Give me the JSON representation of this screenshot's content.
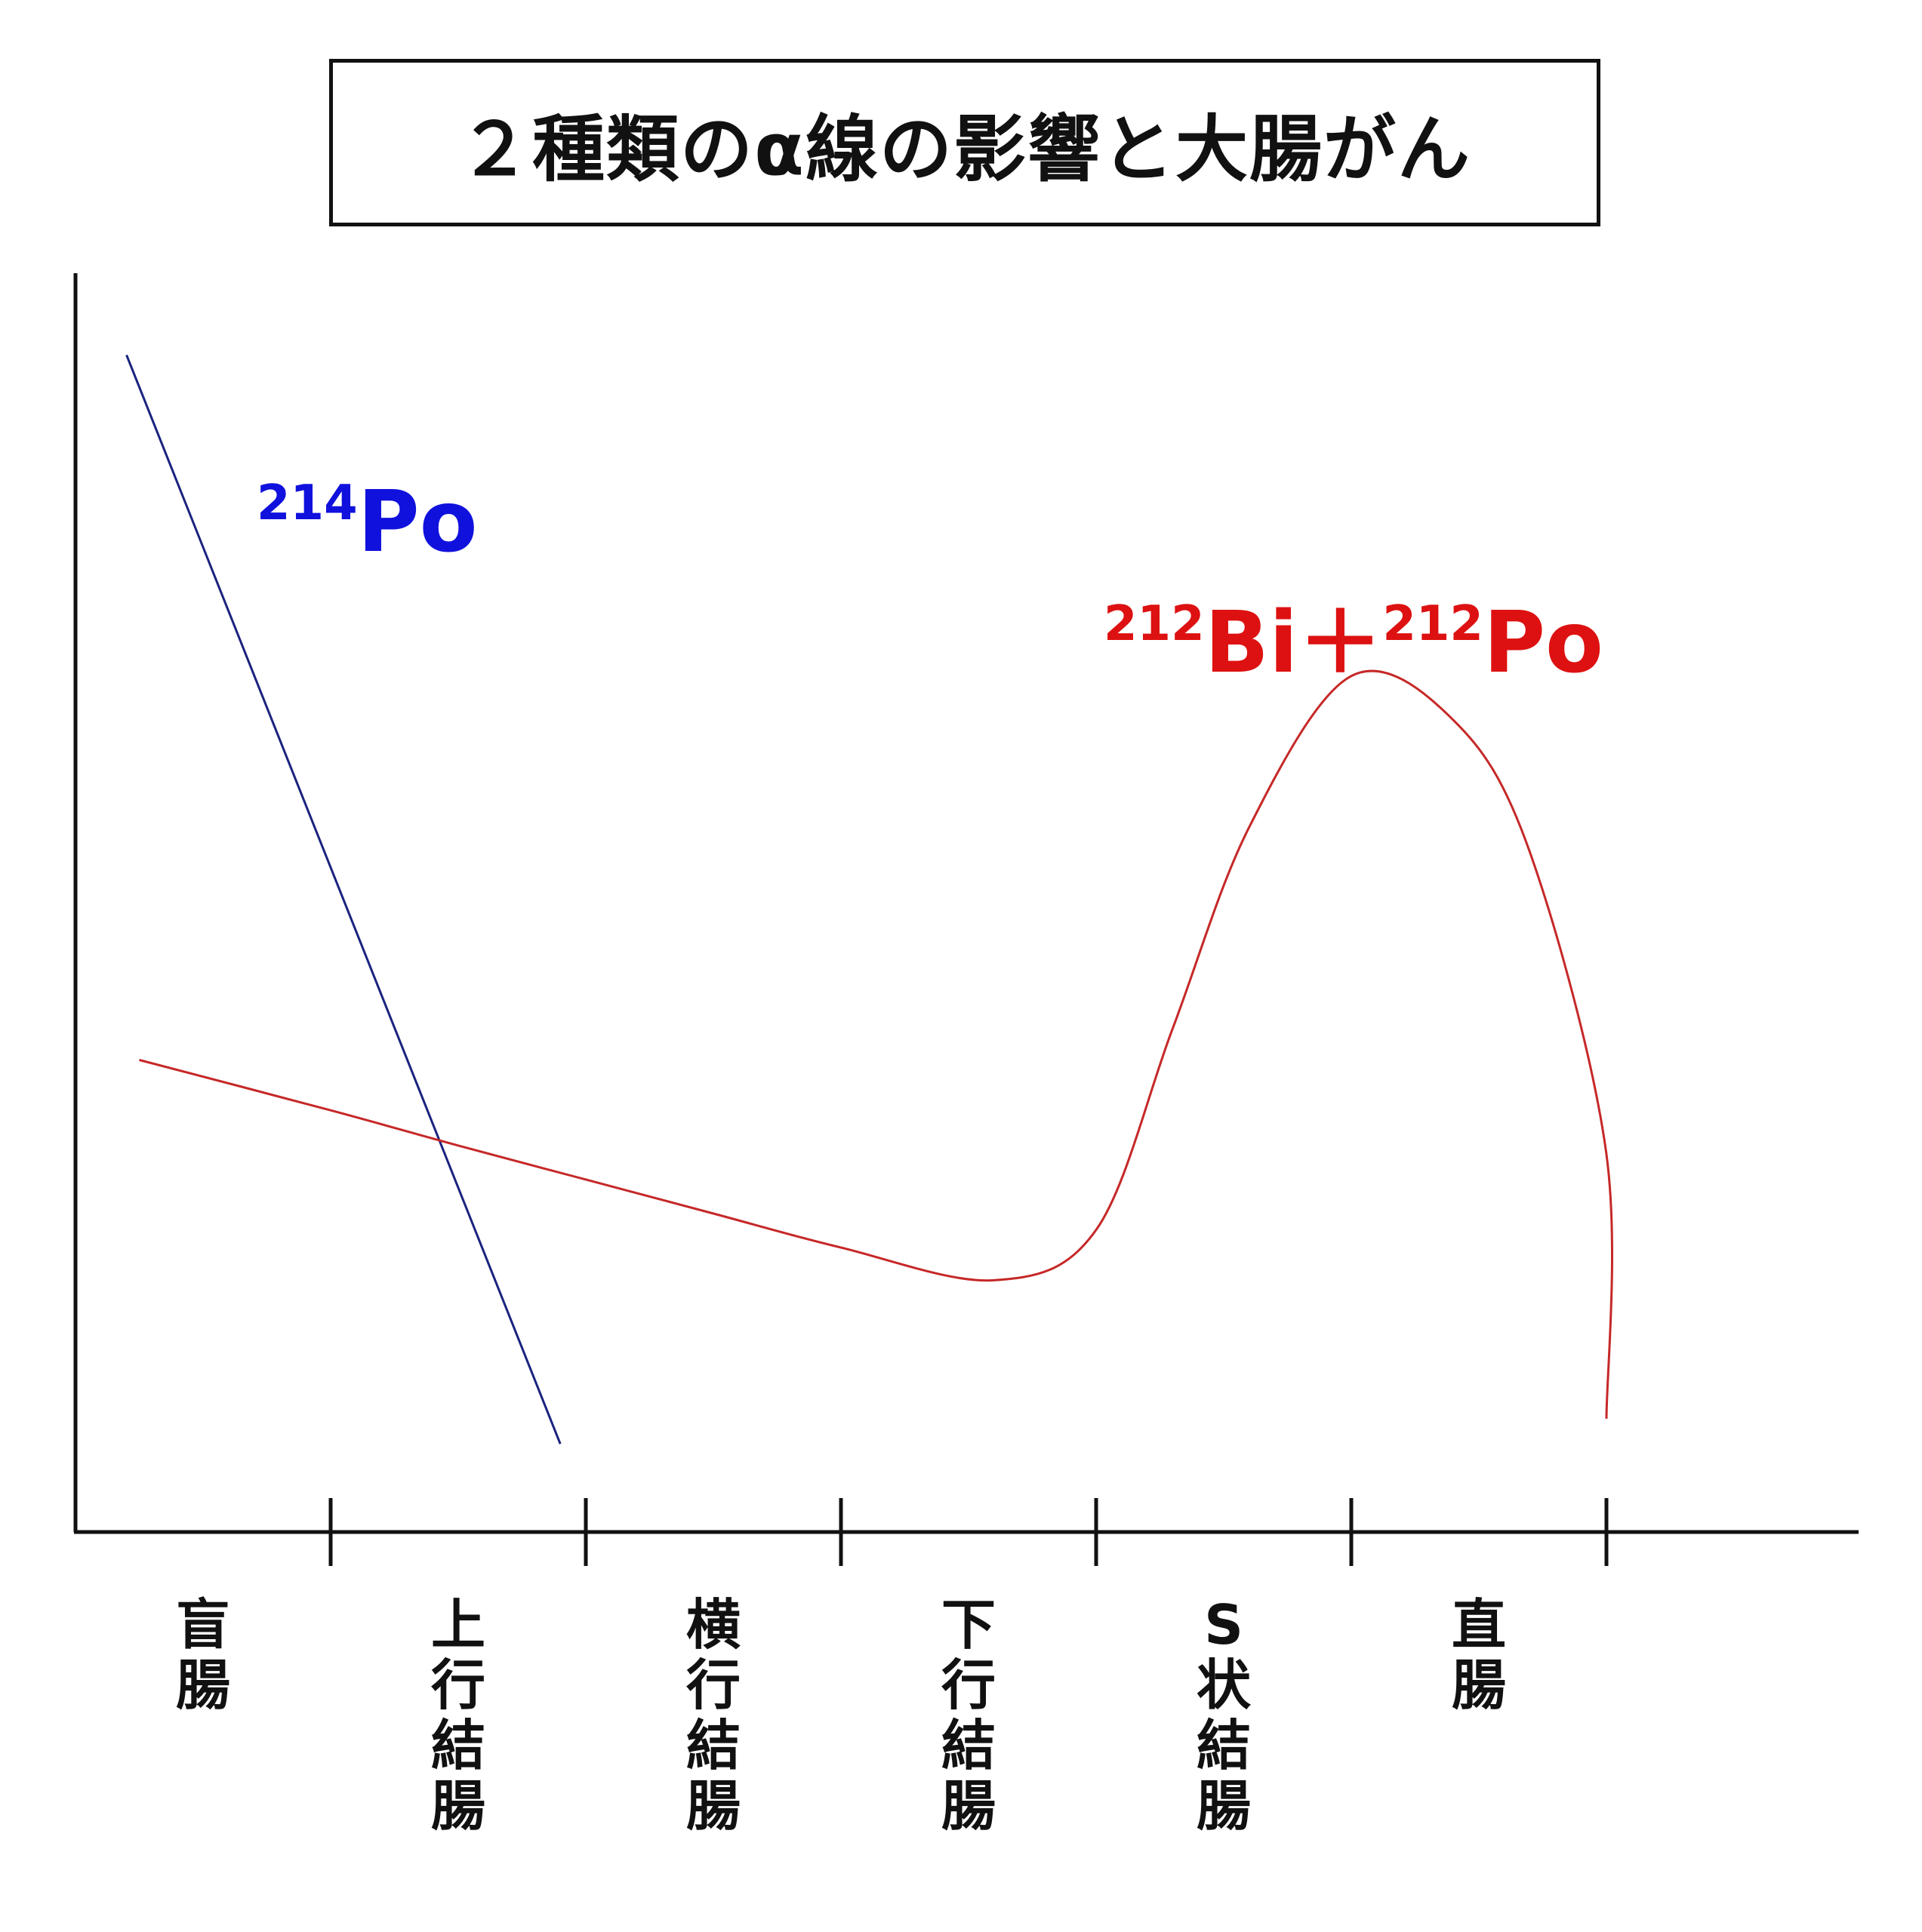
{
  "title": "２種類のα線の影響と大腸がん",
  "chart_data": {
    "type": "line",
    "categories": [
      "盲腸",
      "上行結腸",
      "横行結腸",
      "下行結腸",
      "S状結腸",
      "直腸"
    ],
    "category_ticks": [
      "盲\n腸",
      "上\n行\n結\n腸",
      "横\n行\n結\n腸",
      "下\n行\n結\n腸",
      "S\n状\n結\n腸",
      "直\n腸"
    ],
    "xlim": [
      0,
      7
    ],
    "ylim": [
      0,
      1
    ],
    "grid": false,
    "legend": "inline",
    "series": [
      {
        "name": "214Po",
        "label_sup": "214",
        "label_main": "Po",
        "color": "#1a237e",
        "label_color": "#1111dd",
        "x": [
          0.2,
          1.9
        ],
        "y": [
          0.935,
          0.07
        ]
      },
      {
        "name": "212Bi＋212Po",
        "label_sup1": "212",
        "label_main1": "Bi＋",
        "label_sup2": "212",
        "label_main2": "Po",
        "color": "#c62828",
        "label_color": "#dd1111",
        "x": [
          0.25,
          1.0,
          1.5,
          2.0,
          2.5,
          3.0,
          3.6,
          4.0,
          4.3,
          4.6,
          5.0,
          5.4,
          5.7,
          6.0,
          6.0
        ],
        "y": [
          0.375,
          0.335,
          0.307,
          0.28,
          0.253,
          0.226,
          0.2,
          0.24,
          0.4,
          0.56,
          0.68,
          0.645,
          0.54,
          0.3,
          0.09
        ]
      }
    ]
  }
}
